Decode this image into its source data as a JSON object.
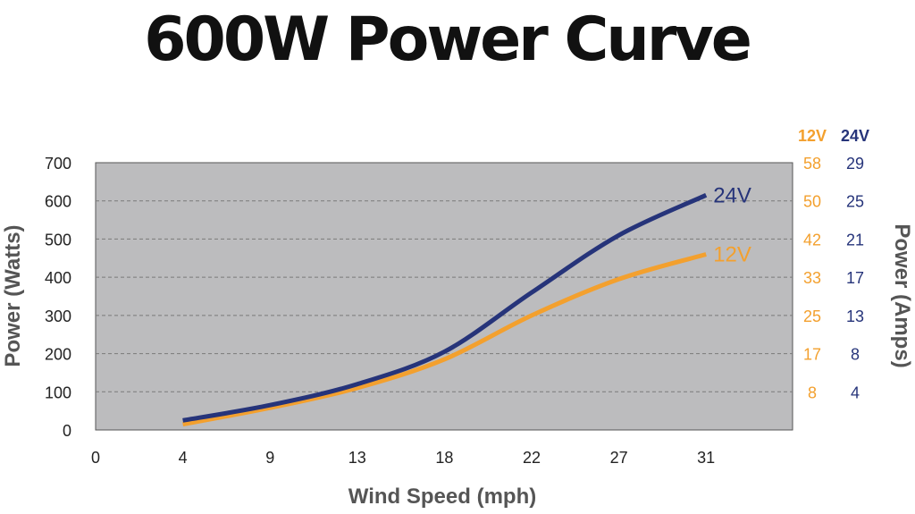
{
  "title": "600W Power Curve",
  "chart_data": {
    "type": "line",
    "title": "600W Power Curve",
    "xlabel": "Wind Speed (mph)",
    "ylabel": "Power (Watts)",
    "y2label": "Power (Amps)",
    "x_ticks": [
      "0",
      "4",
      "9",
      "13",
      "18",
      "22",
      "27",
      "31"
    ],
    "y_ticks": [
      "0",
      "100",
      "200",
      "300",
      "400",
      "500",
      "600",
      "700"
    ],
    "ylim": [
      0,
      700
    ],
    "grid": true,
    "right_axis_headers": [
      "12V",
      "24V"
    ],
    "right_ticks_12v": [
      "8",
      "17",
      "25",
      "33",
      "42",
      "50",
      "58"
    ],
    "right_ticks_24v": [
      "4",
      "8",
      "13",
      "17",
      "21",
      "25",
      "29"
    ],
    "series": [
      {
        "name": "24V",
        "color": "#26347a",
        "x": [
          4,
          9,
          13,
          18,
          22,
          27,
          31
        ],
        "y": [
          25,
          65,
          120,
          205,
          360,
          510,
          615
        ]
      },
      {
        "name": "12V",
        "color": "#f3a02e",
        "x": [
          4,
          9,
          13,
          18,
          22,
          27,
          31
        ],
        "y": [
          15,
          58,
          110,
          185,
          300,
          395,
          460
        ]
      }
    ]
  }
}
